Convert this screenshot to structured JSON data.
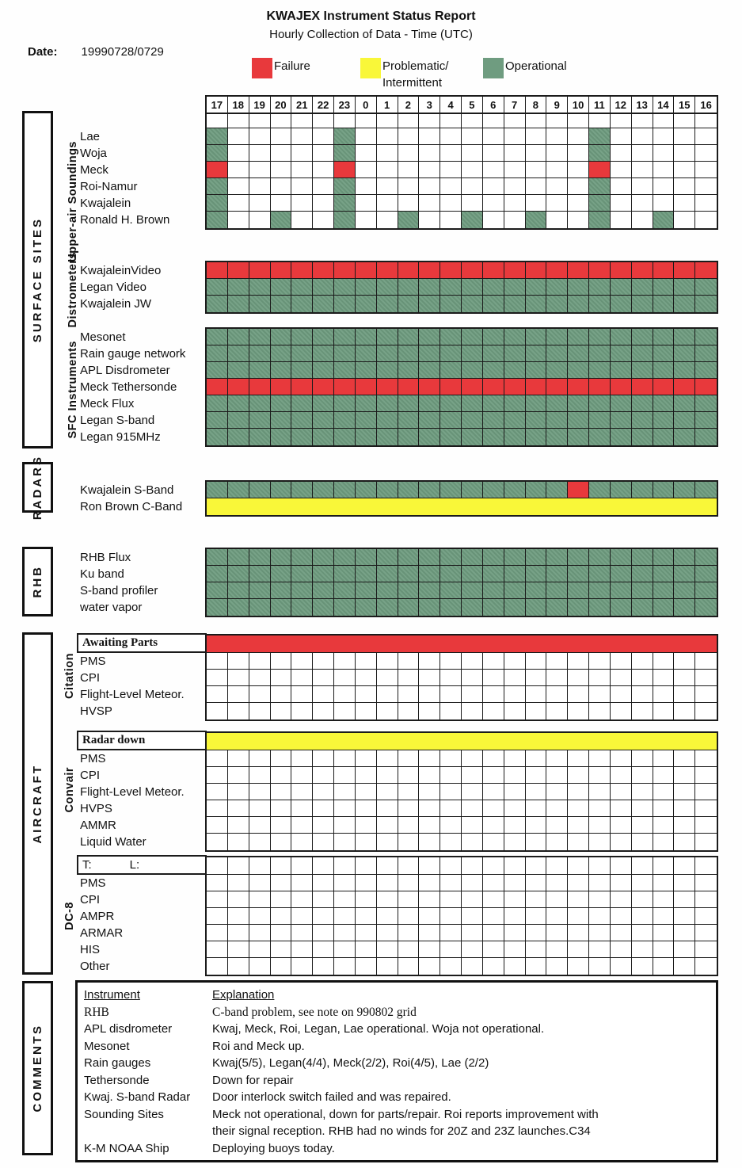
{
  "header": {
    "title": "KWAJEX Instrument Status Report",
    "subtitle": "Hourly Collection of Data - Time (UTC)",
    "date_label": "Date:",
    "date_value": "19990728/0729"
  },
  "colors": {
    "failure": "#e8393c",
    "problematic": "#f9f739",
    "operational": "#6f9c80",
    "grid_line": "#1b1b1b"
  },
  "legend": {
    "failure": {
      "label": "Failure"
    },
    "problematic": {
      "label": "Problematic/",
      "label2": "Intermittent"
    },
    "operational": {
      "label": "Operational"
    }
  },
  "hours": [
    "17",
    "18",
    "19",
    "20",
    "21",
    "22",
    "23",
    "0",
    "1",
    "2",
    "3",
    "4",
    "5",
    "6",
    "7",
    "8",
    "9",
    "10",
    "11",
    "12",
    "13",
    "14",
    "15",
    "16"
  ],
  "side_sections": {
    "surface": "SURFACE SITES",
    "radars": "RADARS",
    "rhb": "RHB",
    "aircraft": "AIRCRAFT",
    "comments": "COMMENTS"
  },
  "group_labels": {
    "upper_air": "Upper-air Soundings",
    "distrometers": "Distrometers",
    "sfc": "SFC Instruments",
    "citation": "Citation",
    "convair": "Convair",
    "dc8": "DC-8"
  },
  "grids": [
    {
      "id": "upper-air",
      "rows": [
        {
          "label": "Lae",
          "cells": {
            "17": "operational",
            "23": "operational",
            "11": "operational"
          }
        },
        {
          "label": "Woja",
          "cells": {
            "17": "operational",
            "23": "operational",
            "11": "operational"
          }
        },
        {
          "label": "Meck",
          "cells": {
            "17": "failure",
            "23": "failure",
            "11": "failure"
          }
        },
        {
          "label": "Roi-Namur",
          "cells": {
            "17": "operational",
            "23": "operational",
            "11": "operational"
          }
        },
        {
          "label": "Kwajalein",
          "cells": {
            "17": "operational",
            "23": "operational",
            "11": "operational"
          }
        },
        {
          "label": "Ronald H. Brown",
          "cells": {
            "17": "operational",
            "20": "operational",
            "23": "operational",
            "2": "operational",
            "5": "operational",
            "8": "operational",
            "11": "operational",
            "14": "operational"
          }
        }
      ]
    },
    {
      "id": "distrometers",
      "rows": [
        {
          "label": "KwajaleinVideo",
          "all": "failure"
        },
        {
          "label": "Legan Video",
          "all": "operational"
        },
        {
          "label": "Kwajalein JW",
          "all": "operational"
        }
      ]
    },
    {
      "id": "sfc-instruments",
      "rows": [
        {
          "label": "Mesonet",
          "all": "operational"
        },
        {
          "label": "Rain gauge network",
          "all": "operational"
        },
        {
          "label": "APL Disdrometer",
          "all": "operational"
        },
        {
          "label": "Meck Tethersonde",
          "all": "failure"
        },
        {
          "label": "Meck Flux",
          "all": "operational"
        },
        {
          "label": "Legan S-band",
          "all": "operational"
        },
        {
          "label": "Legan 915MHz",
          "all": "operational"
        }
      ]
    },
    {
      "id": "radars",
      "rows": [
        {
          "label": "Kwajalein S-Band",
          "all": "operational",
          "cells": {
            "10": "failure"
          }
        },
        {
          "label": "Ron Brown C-Band",
          "bar": "problematic"
        }
      ]
    },
    {
      "id": "rhb",
      "rows": [
        {
          "label": "RHB Flux",
          "all": "operational"
        },
        {
          "label": "Ku band",
          "all": "operational"
        },
        {
          "label": "S-band profiler",
          "all": "operational"
        },
        {
          "label": "water vapor",
          "all": "operational"
        }
      ]
    },
    {
      "id": "citation",
      "rows": [
        {
          "label": "Awaiting Parts",
          "label_box": true,
          "bar": "failure"
        },
        {
          "label": "PMS"
        },
        {
          "label": "CPI"
        },
        {
          "label": "Flight-Level Meteor."
        },
        {
          "label": "HVSP"
        }
      ]
    },
    {
      "id": "convair",
      "rows": [
        {
          "label": "Radar down",
          "label_box": true,
          "bar": "problematic"
        },
        {
          "label": "PMS"
        },
        {
          "label": "CPI"
        },
        {
          "label": "Flight-Level Meteor."
        },
        {
          "label": "HVPS"
        },
        {
          "label": "AMMR"
        },
        {
          "label": "Liquid Water"
        }
      ]
    },
    {
      "id": "dc8",
      "rows": [
        {
          "label_box": true,
          "sans": true,
          "t_label": "T:",
          "l_label": "L:"
        },
        {
          "label": "PMS"
        },
        {
          "label": "CPI"
        },
        {
          "label": "AMPR"
        },
        {
          "label": "ARMAR"
        },
        {
          "label": "HIS"
        },
        {
          "label": "Other"
        }
      ]
    }
  ],
  "comments": {
    "header": {
      "instrument": "Instrument",
      "explanation": "Explanation"
    },
    "rows": [
      {
        "instrument": "RHB",
        "explanation": "C-band problem, see note on  990802 grid",
        "serif": true
      },
      {
        "instrument": "APL disdrometer",
        "explanation": "Kwaj, Meck, Roi, Legan, Lae operational. Woja not operational."
      },
      {
        "instrument": "Mesonet",
        "explanation": "Roi and Meck up."
      },
      {
        "instrument": "Rain gauges",
        "explanation": "Kwaj(5/5), Legan(4/4), Meck(2/2), Roi(4/5), Lae (2/2)"
      },
      {
        "instrument": "Tethersonde",
        "explanation": "Down for repair"
      },
      {
        "instrument": "Kwaj. S-band Radar",
        "explanation": " Door interlock switch failed and was repaired."
      },
      {
        "instrument": "Sounding Sites",
        "explanation": "Meck not operational, down for parts/repair. Roi reports improvement with",
        "explanation2": " their signal reception. RHB had no winds for 20Z and 23Z launches.C34"
      },
      {
        "instrument": "K-M NOAA Ship",
        "explanation": "Deploying buoys today."
      }
    ]
  }
}
